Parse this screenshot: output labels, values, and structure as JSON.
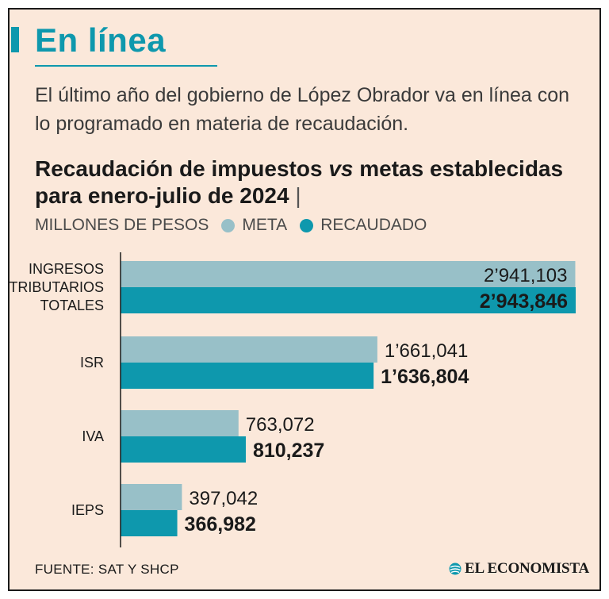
{
  "header": {
    "title": "En línea",
    "subtitle": "El último año del gobierno de López Obrador va en línea con lo programado en materia de recaudación."
  },
  "chart_title": {
    "part1": "Recaudación de impuestos ",
    "vs": "vs",
    "part2": " metas establecidas para enero-julio de 2024",
    "sep": "|"
  },
  "legend": {
    "units": "MILLONES DE PESOS",
    "meta_label": "META",
    "recaudado_label": "RECAUDADO"
  },
  "colors": {
    "meta": "#98c0c8",
    "recaudado": "#0e98ad",
    "accent": "#0e98ad",
    "background": "#fbe8da"
  },
  "chart_data": {
    "type": "bar",
    "orientation": "horizontal",
    "title": "Recaudación de impuestos vs metas establecidas para enero-julio de 2024",
    "units": "MILLONES DE PESOS",
    "categories": [
      [
        "INGRESOS",
        "TRIBUTARIOS",
        "TOTALES"
      ],
      [
        "ISR"
      ],
      [
        "IVA"
      ],
      [
        "IEPS"
      ]
    ],
    "series": [
      {
        "name": "META",
        "values": [
          2941103,
          1661041,
          763072,
          397042
        ],
        "labels": [
          "2’941,103",
          "1’661,041",
          "763,072",
          "397,042"
        ]
      },
      {
        "name": "RECAUDADO",
        "values": [
          2943846,
          1636804,
          810237,
          366982
        ],
        "labels": [
          "2’943,846",
          "1’636,804",
          "810,237",
          "366,982"
        ]
      }
    ],
    "xlim": [
      0,
      2943846
    ],
    "grid": false,
    "legend_position": "top-left"
  },
  "footer": {
    "source": "FUENTE: SAT Y SHCP",
    "brand": "EL ECONOMISTA"
  }
}
